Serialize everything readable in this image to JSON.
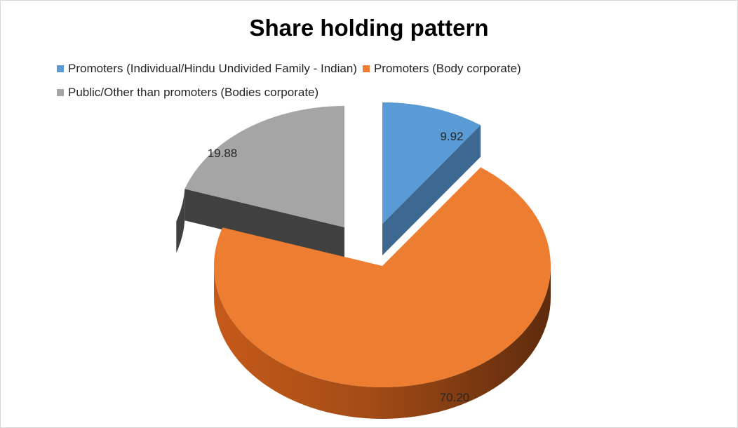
{
  "chart_data": {
    "type": "pie",
    "title": "Share holding pattern",
    "slices": [
      {
        "name": "Promoters (Individual/Hindu Undivided Family - Indian)",
        "value": 9.92,
        "label": "9.92",
        "color": "#5b9bd5"
      },
      {
        "name": "Promoters (Body corporate)",
        "value": 70.2,
        "label": "70.20",
        "color": "#ed7d31"
      },
      {
        "name": "Public/Other than promoters (Bodies corporate)",
        "value": 19.88,
        "label": "19.88",
        "color": "#a5a5a5"
      }
    ],
    "legend_position": "top-left",
    "style": "3d-exploded"
  }
}
